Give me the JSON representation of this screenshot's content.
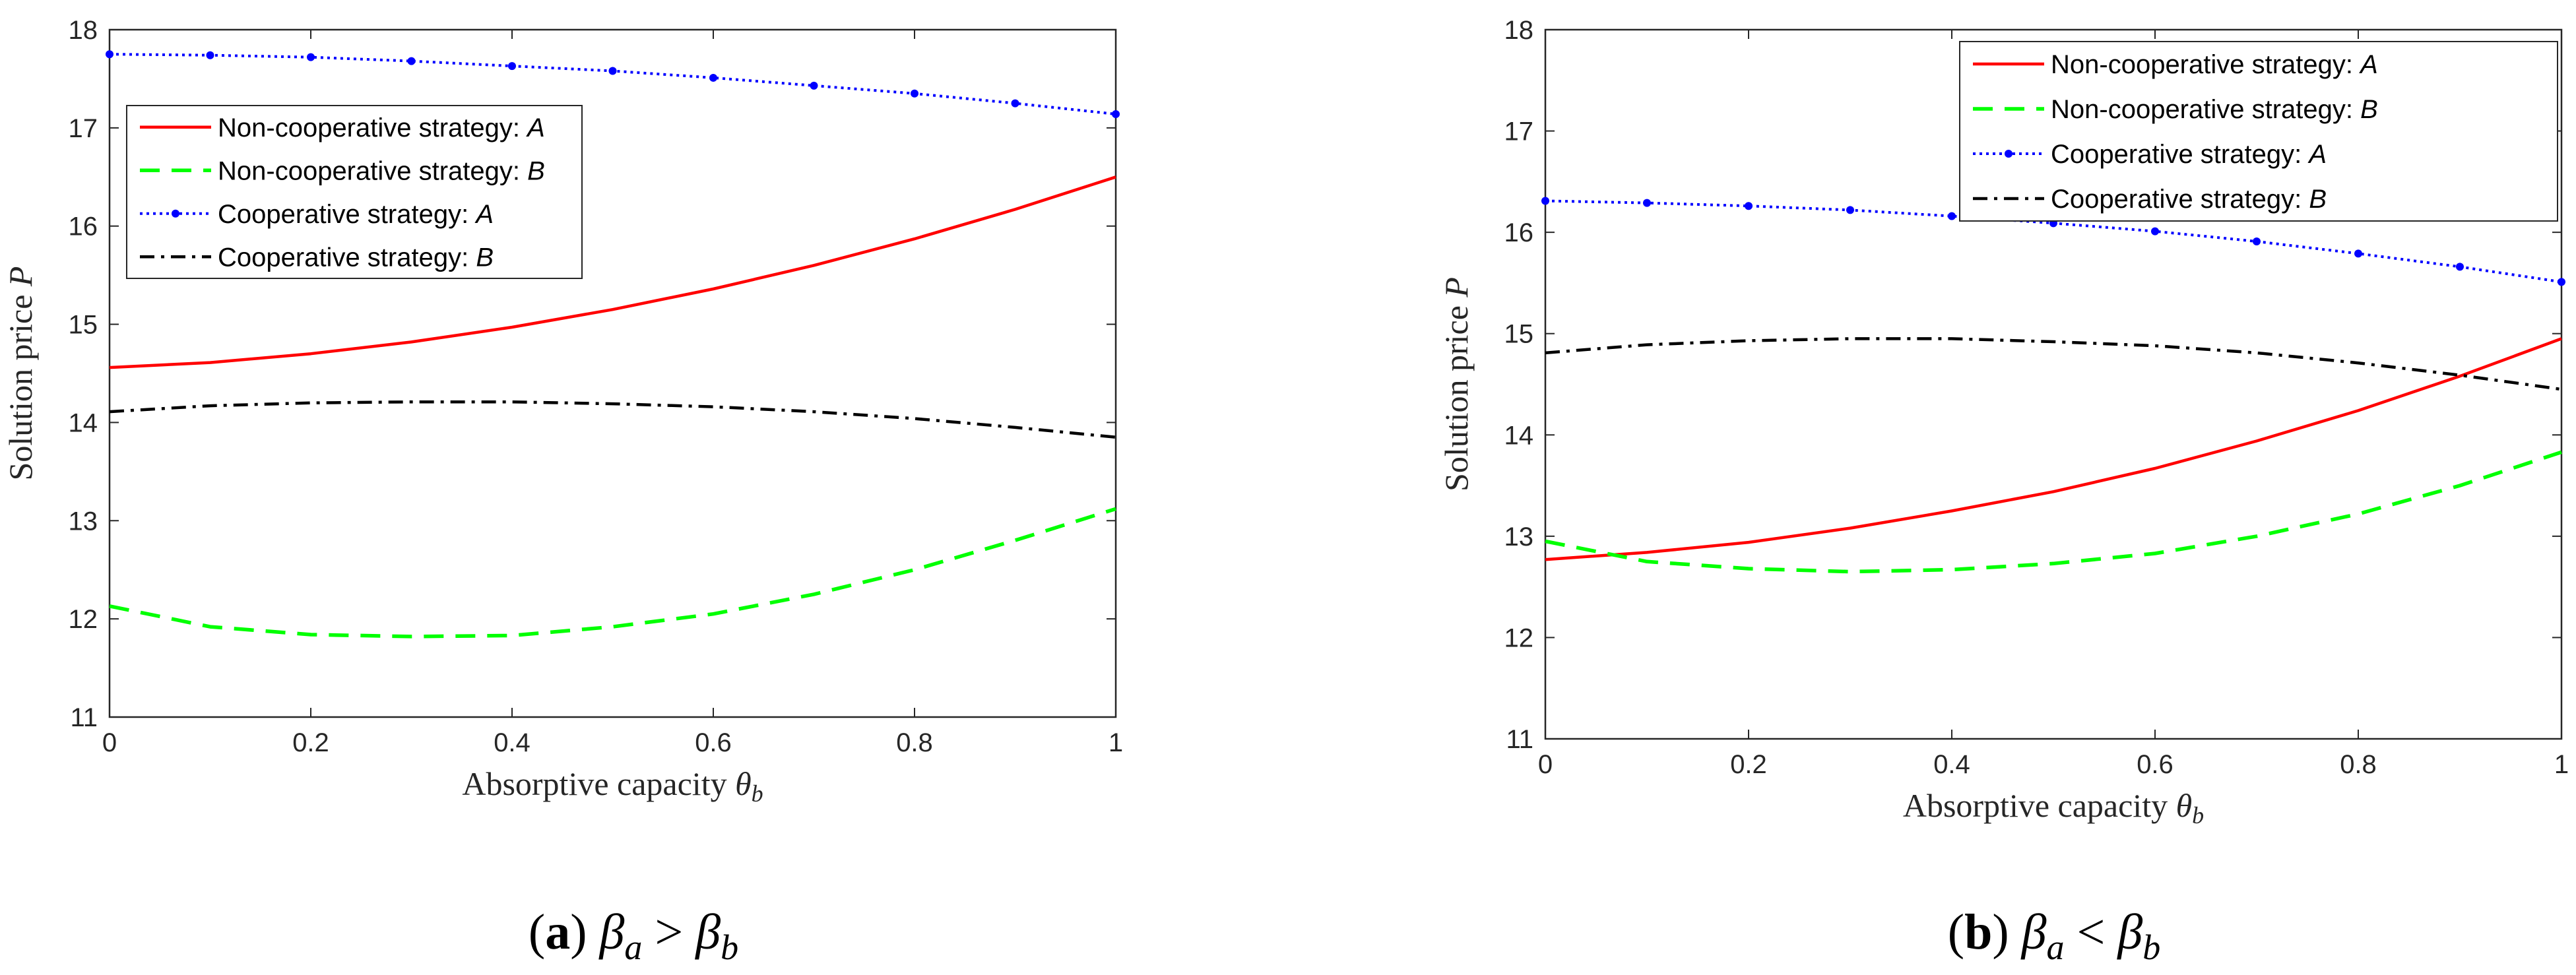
{
  "chart_data": [
    {
      "type": "line",
      "panel": "a",
      "caption_letter": "a",
      "caption_condition": {
        "lhs": "β",
        "lhs_sub": "a",
        "op": ">",
        "rhs": "β",
        "rhs_sub": "b"
      },
      "xlabel": "Absorptive capacity",
      "xlabel_symbol": "θ",
      "xlabel_sub": "b",
      "ylabel": "Solution price",
      "ylabel_symbol": "P",
      "xlim": [
        0,
        1
      ],
      "ylim": [
        11,
        18
      ],
      "xticks": [
        "0",
        "0.2",
        "0.4",
        "0.6",
        "0.8",
        "1"
      ],
      "yticks": [
        "11",
        "12",
        "13",
        "14",
        "15",
        "16",
        "17",
        "18"
      ],
      "legend_position": "upper-left",
      "x": [
        0,
        0.1,
        0.2,
        0.3,
        0.4,
        0.5,
        0.6,
        0.7,
        0.8,
        0.9,
        1.0
      ],
      "series": [
        {
          "name": "Non-cooperative strategy: ",
          "strategy": "A",
          "color": "#ff0000",
          "style": "solid",
          "values": [
            14.56,
            14.61,
            14.7,
            14.82,
            14.97,
            15.15,
            15.36,
            15.6,
            15.87,
            16.17,
            16.5
          ]
        },
        {
          "name": "Non-cooperative strategy: ",
          "strategy": "B",
          "color": "#00ff00",
          "style": "dashed",
          "values": [
            12.13,
            11.92,
            11.84,
            11.82,
            11.83,
            11.92,
            12.05,
            12.25,
            12.5,
            12.8,
            13.12
          ]
        },
        {
          "name": "Cooperative strategy: ",
          "strategy": "A",
          "color": "#0000ff",
          "style": "dotted-marker",
          "values": [
            17.75,
            17.74,
            17.72,
            17.68,
            17.63,
            17.58,
            17.51,
            17.43,
            17.35,
            17.25,
            17.14
          ]
        },
        {
          "name": "Cooperative strategy: ",
          "strategy": "B",
          "color": "#000000",
          "style": "dashdot",
          "values": [
            14.11,
            14.17,
            14.2,
            14.21,
            14.21,
            14.19,
            14.16,
            14.11,
            14.04,
            13.95,
            13.85
          ]
        }
      ]
    },
    {
      "type": "line",
      "panel": "b",
      "caption_letter": "b",
      "caption_condition": {
        "lhs": "β",
        "lhs_sub": "a",
        "op": "<",
        "rhs": "β",
        "rhs_sub": "b"
      },
      "xlabel": "Absorptive capacity",
      "xlabel_symbol": "θ",
      "xlabel_sub": "b",
      "ylabel": "Solution price",
      "ylabel_symbol": "P",
      "xlim": [
        0,
        1
      ],
      "ylim": [
        11,
        18
      ],
      "xticks": [
        "0",
        "0.2",
        "0.4",
        "0.6",
        "0.8",
        "1"
      ],
      "yticks": [
        "11",
        "12",
        "13",
        "14",
        "15",
        "16",
        "17",
        "18"
      ],
      "legend_position": "upper-right",
      "x": [
        0,
        0.1,
        0.2,
        0.3,
        0.4,
        0.5,
        0.6,
        0.7,
        0.8,
        0.9,
        1.0
      ],
      "series": [
        {
          "name": "Non-cooperative strategy: ",
          "strategy": "A",
          "color": "#ff0000",
          "style": "solid",
          "values": [
            12.77,
            12.84,
            12.94,
            13.08,
            13.25,
            13.44,
            13.67,
            13.94,
            14.24,
            14.58,
            14.95
          ]
        },
        {
          "name": "Non-cooperative strategy: ",
          "strategy": "B",
          "color": "#00ff00",
          "style": "dashed",
          "values": [
            12.95,
            12.75,
            12.68,
            12.65,
            12.67,
            12.73,
            12.83,
            13.0,
            13.22,
            13.5,
            13.83
          ]
        },
        {
          "name": "Cooperative strategy: ",
          "strategy": "A",
          "color": "#0000ff",
          "style": "dotted-marker",
          "values": [
            16.31,
            16.29,
            16.26,
            16.22,
            16.16,
            16.09,
            16.01,
            15.91,
            15.79,
            15.66,
            15.51
          ]
        },
        {
          "name": "Cooperative strategy: ",
          "strategy": "B",
          "color": "#000000",
          "style": "dashdot",
          "values": [
            14.81,
            14.89,
            14.93,
            14.95,
            14.95,
            14.92,
            14.88,
            14.81,
            14.71,
            14.59,
            14.45
          ]
        }
      ]
    }
  ]
}
